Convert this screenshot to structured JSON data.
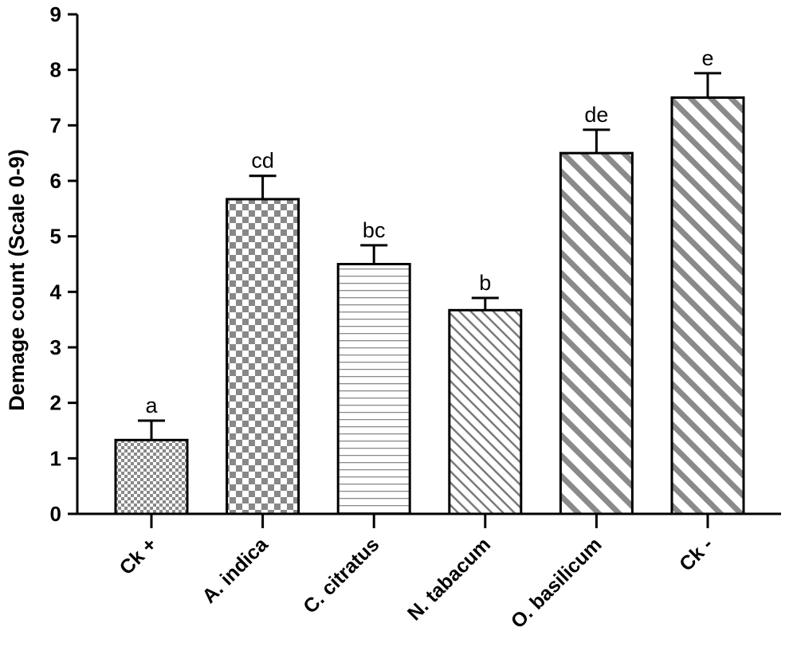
{
  "chart_data": {
    "type": "bar",
    "title": "",
    "xlabel": "",
    "ylabel": "Demage count (Scale 0-9)",
    "ylim": [
      0,
      9
    ],
    "yticks": [
      "0",
      "1",
      "2",
      "3",
      "4",
      "5",
      "6",
      "7",
      "8",
      "9"
    ],
    "categories": [
      "Ck +",
      "A. indica",
      "C. citratus",
      "N. tabacum",
      "O. basilicum",
      "Ck -"
    ],
    "values": [
      1.33,
      5.67,
      4.5,
      3.67,
      6.5,
      7.5
    ],
    "errors": [
      0.35,
      0.42,
      0.34,
      0.22,
      0.42,
      0.44
    ],
    "significance_letters": [
      "a",
      "cd",
      "bc",
      "b",
      "de",
      "e"
    ],
    "fill_patterns": [
      "fine-checker",
      "coarse-checker",
      "horizontal-lines",
      "diagonal-fine",
      "diagonal-wide",
      "diagonal-wide"
    ]
  }
}
